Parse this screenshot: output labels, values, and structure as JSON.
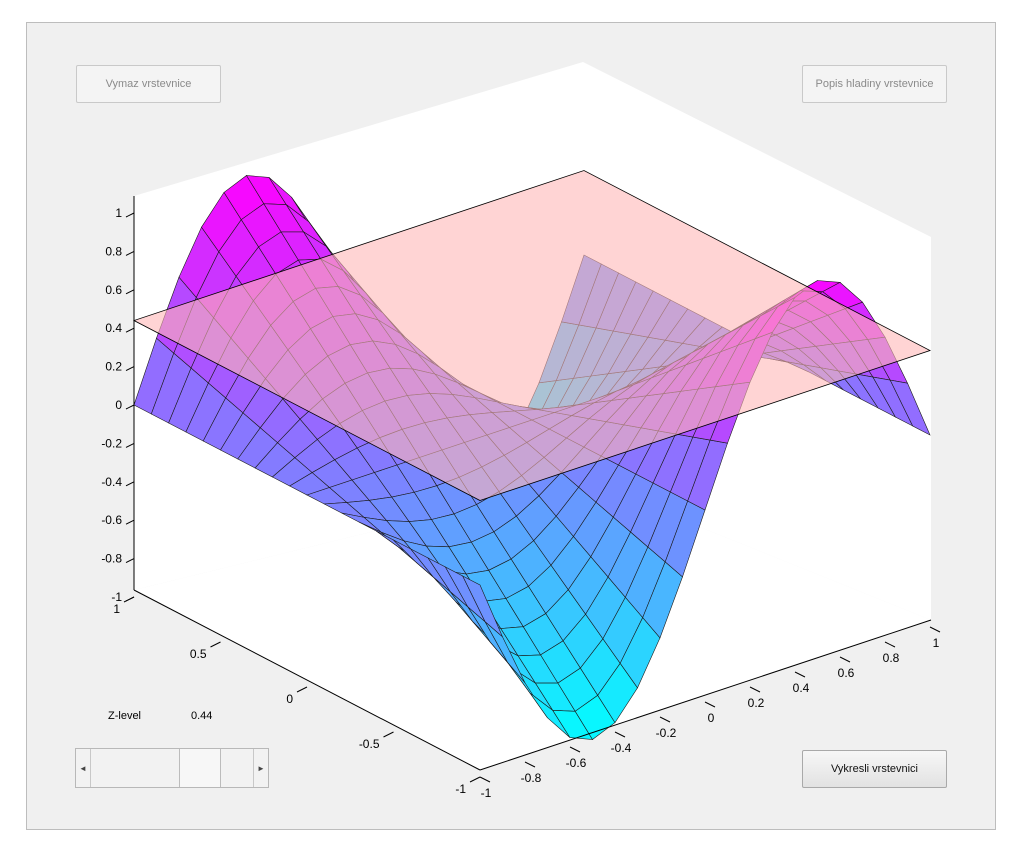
{
  "buttons": {
    "clear_label": "Vymaz vrstevnice",
    "describe_label": "Popis hladiny vrstevnice",
    "draw_label": "Vykresli vrstevnici"
  },
  "z_level": {
    "label": "Z-level",
    "value": "0.44",
    "slider_fraction": 0.72
  },
  "axes": {
    "z_ticks": [
      "1",
      "0.8",
      "0.6",
      "0.4",
      "0.2",
      "0",
      "-0.2",
      "-0.4",
      "-0.6",
      "-0.8",
      "-1"
    ],
    "y_ticks": [
      "1",
      "0.5",
      "0",
      "-0.5",
      "-1"
    ],
    "x_ticks": [
      "-1",
      "-0.8",
      "-0.6",
      "-0.4",
      "-0.2",
      "0",
      "0.2",
      "0.4",
      "0.6",
      "0.8",
      "1"
    ]
  },
  "colors": {
    "surface_low": "#00ffff",
    "surface_high": "#ff00ff",
    "plane": "#ffb7b7"
  }
}
